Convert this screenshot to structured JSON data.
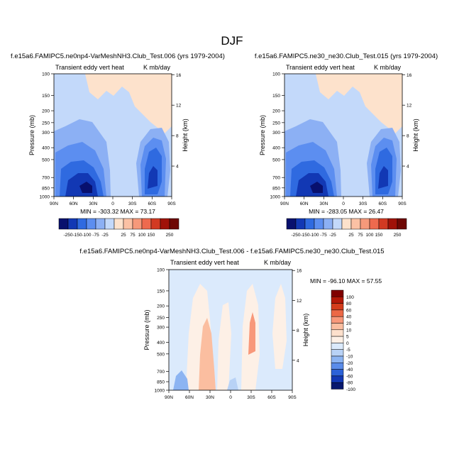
{
  "title": "DJF",
  "chart_data": [
    {
      "type": "heatmap",
      "title": "f.e15a6.FAMIPC5.ne0np4-VarMeshNH3.Club_Test.006 (yrs 1979-2004)",
      "left_string": "Transient eddy vert heat",
      "right_string": "K mb/day",
      "ylabel": "Pressure (mb)",
      "ylabel_right": "Height (km)",
      "xticks": [
        "90N",
        "60N",
        "30N",
        "0",
        "30S",
        "60S",
        "90S"
      ],
      "yticks": [
        "100",
        "150",
        "200",
        "250",
        "300",
        "400",
        "500",
        "700",
        "850",
        "1000"
      ],
      "yticks_right": [
        "4",
        "8",
        "12",
        "16"
      ],
      "stats": "MIN = -303.32   MAX = 73.17",
      "colorbar_labels": [
        "-250",
        "-150",
        "-100",
        "-75",
        "-25",
        "25",
        "75",
        "100",
        "150",
        "250"
      ]
    },
    {
      "type": "heatmap",
      "title": "f.e15a6.FAMIPC5.ne30_ne30.Club_Test.015 (yrs 1979-2004)",
      "left_string": "Transient eddy vert heat",
      "right_string": "K mb/day",
      "ylabel": "Pressure (mb)",
      "ylabel_right": "Height (km)",
      "xticks": [
        "90N",
        "60N",
        "30N",
        "0",
        "30S",
        "60S",
        "90S"
      ],
      "yticks": [
        "100",
        "150",
        "200",
        "250",
        "300",
        "400",
        "500",
        "700",
        "850",
        "1000"
      ],
      "yticks_right": [
        "4",
        "8",
        "12",
        "16"
      ],
      "stats": "MIN = -283.05   MAX = 26.47",
      "colorbar_labels": [
        "-250",
        "-150",
        "-100",
        "-75",
        "-25",
        "25",
        "75",
        "100",
        "150",
        "250"
      ]
    },
    {
      "type": "heatmap",
      "title": "f.e15a6.FAMIPC5.ne0np4-VarMeshNH3.Club_Test.006 - f.e15a6.FAMIPC5.ne30_ne30.Club_Test.015",
      "left_string": "Transient eddy vert heat",
      "right_string": "K mb/day",
      "ylabel": "Pressure (mb)",
      "ylabel_right": "Height (km)",
      "xticks": [
        "90N",
        "60N",
        "30N",
        "0",
        "30S",
        "60S",
        "90S"
      ],
      "yticks": [
        "100",
        "150",
        "200",
        "250",
        "300",
        "400",
        "500",
        "700",
        "850",
        "1000"
      ],
      "yticks_right": [
        "4",
        "8",
        "12",
        "16"
      ],
      "stats": "MIN = -96.10   MAX = 57.55",
      "colorbar_labels": [
        "100",
        "80",
        "60",
        "40",
        "20",
        "10",
        "5",
        "0",
        "-5",
        "-10",
        "-20",
        "-40",
        "-60",
        "-80",
        "-100"
      ]
    }
  ],
  "colors": {
    "main_scale": [
      "#08106e",
      "#1238b4",
      "#2f6ae0",
      "#5c8ef0",
      "#8cb0f4",
      "#c3d9fa",
      "#fde2cc",
      "#fbc1a4",
      "#f6997a",
      "#ee6a4e",
      "#d23a22",
      "#a01208",
      "#6e0804"
    ],
    "diff_scale_top_to_bottom": [
      "#800000",
      "#b41808",
      "#d43c1c",
      "#ec6846",
      "#f8987a",
      "#fbbea0",
      "#fde0cc",
      "#fdf0e6",
      "#dbeafc",
      "#b8d2f6",
      "#8cb4f2",
      "#5a8cea",
      "#2c62d8",
      "#1238b4",
      "#08186e"
    ]
  }
}
